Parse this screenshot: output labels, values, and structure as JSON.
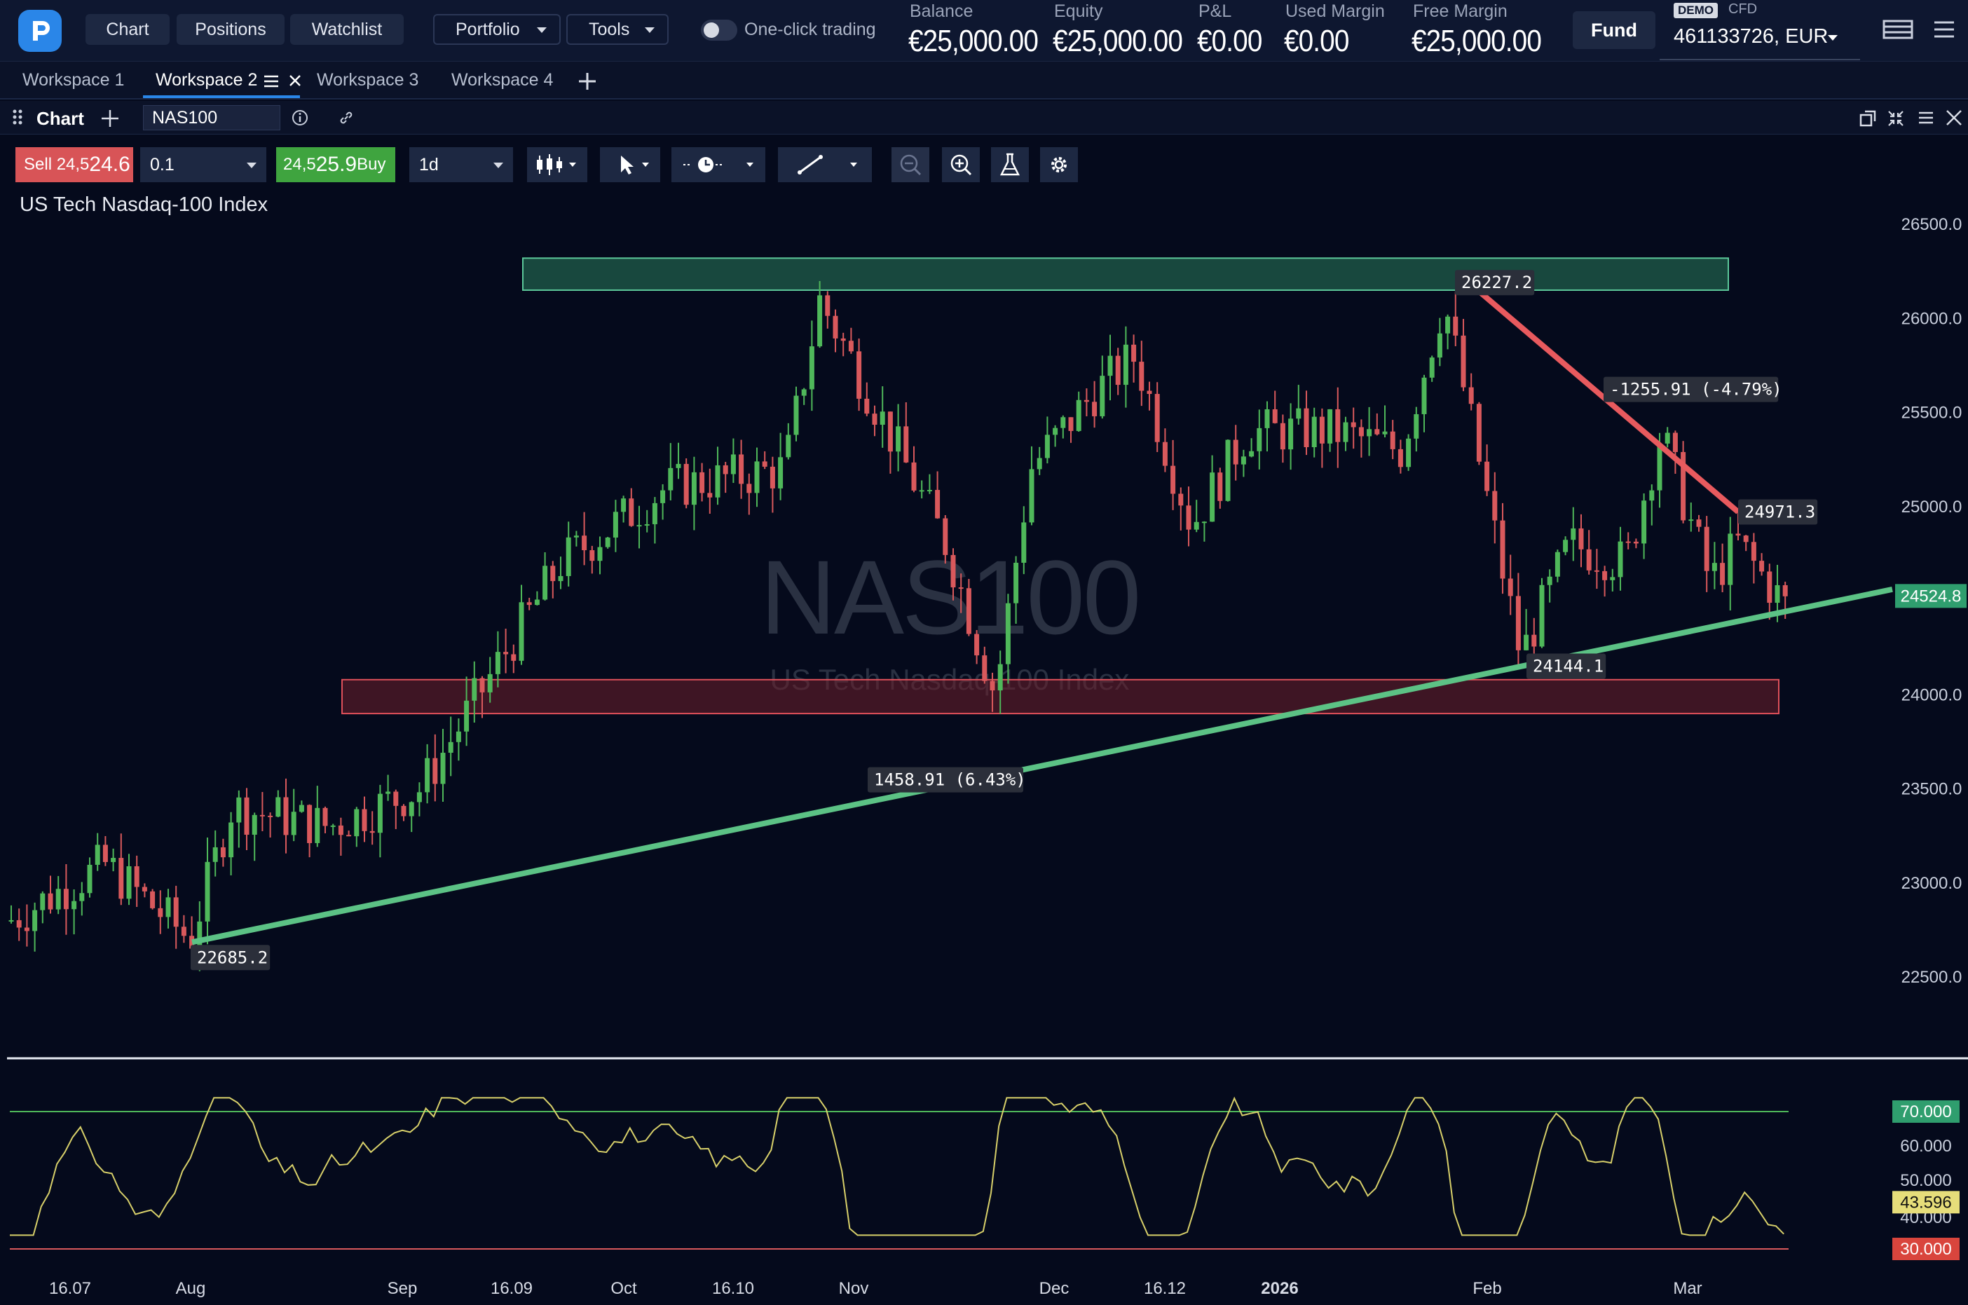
{
  "header": {
    "nav": [
      {
        "label": "Chart"
      },
      {
        "label": "Positions"
      },
      {
        "label": "Watchlist"
      }
    ],
    "dropdowns": [
      {
        "label": "Portfolio"
      },
      {
        "label": "Tools"
      }
    ],
    "one_click_label": "One-click trading",
    "stats": [
      {
        "label": "Balance",
        "value": "€25,000.00"
      },
      {
        "label": "Equity",
        "value": "€25,000.00"
      },
      {
        "label": "P&L",
        "value": "€0.00"
      },
      {
        "label": "Used Margin",
        "value": "€0.00"
      },
      {
        "label": "Free Margin",
        "value": "€25,000.00"
      }
    ],
    "fund_label": "Fund",
    "account": {
      "badge": "DEMO",
      "type": "CFD",
      "number": "461133726, EUR"
    }
  },
  "workspaces": [
    {
      "label": "Workspace 1"
    },
    {
      "label": "Workspace 2"
    },
    {
      "label": "Workspace 3"
    },
    {
      "label": "Workspace 4"
    }
  ],
  "panel": {
    "title": "Chart",
    "symbol": "NAS100"
  },
  "toolbar": {
    "sell_prefix": "Sell 24,5",
    "sell_big": "24.6",
    "buy_prefix": "24,5",
    "buy_big": "25.9",
    "buy_suffix": " Buy",
    "quantity": "0.1",
    "timeframe": "1d"
  },
  "chart": {
    "title": "US Tech Nasdaq-100 Index",
    "watermark": "NAS100",
    "watermark_sub": "US Tech Nasdaq-100 Index",
    "colors": {
      "up": "#4fb85a",
      "down": "#d9595c",
      "trend_up": "#5cc285",
      "trend_down": "#e85a5e",
      "rsi": "#d8d06a"
    }
  },
  "chart_data": {
    "type": "candlestick",
    "y_axis": {
      "min": 22500,
      "max": 26500,
      "ticks": [
        "26500.0",
        "26000.0",
        "25500.0",
        "25000.0",
        "24500.0",
        "24000.0",
        "23500.0",
        "23000.0",
        "22500.0"
      ]
    },
    "current_price": "24524.8",
    "x_ticks": [
      "16.07",
      "Aug",
      "Sep",
      "16.09",
      "Oct",
      "16.10",
      "Nov",
      "Dec",
      "16.12",
      "2026",
      "Feb",
      "Mar"
    ],
    "annotations": [
      {
        "label": "26227.2"
      },
      {
        "label": "-1255.91 (-4.79%)"
      },
      {
        "label": "24971.3"
      },
      {
        "label": "24144.1"
      },
      {
        "label": "1458.91 (6.43%)"
      },
      {
        "label": "22685.2"
      }
    ],
    "zones": [
      {
        "name": "resistance",
        "from": 26150,
        "to": 26320
      },
      {
        "name": "support",
        "from": 23900,
        "to": 24080
      }
    ],
    "rsi": {
      "levels": [
        "70.000",
        "60.000",
        "50.000",
        "40.000",
        "30.000"
      ],
      "current": "43.596"
    }
  }
}
